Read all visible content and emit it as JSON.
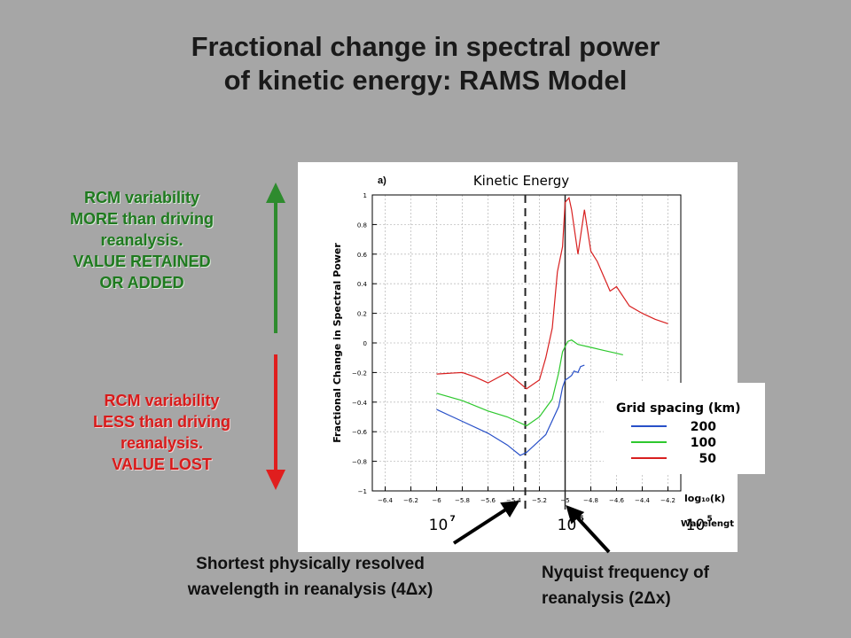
{
  "slide": {
    "title_lines": [
      "Fractional change in spectral power",
      "of kinetic energy: RAMS Model"
    ],
    "more_label_lines": [
      "RCM variability",
      "MORE than driving",
      "reanalysis.",
      "VALUE RETAINED",
      "OR ADDED"
    ],
    "less_label_lines": [
      "RCM variability",
      "LESS than driving",
      "reanalysis.",
      "VALUE LOST"
    ],
    "callout_4dx_lines": [
      "Shortest physically resolved",
      "wavelength in reanalysis (4Δx)"
    ],
    "callout_2dx_lines": [
      "Nyquist frequency of",
      "reanalysis (2Δx)"
    ],
    "colors": {
      "background": "#a6a6a6",
      "more": "#1f7a1f",
      "less": "#d81b1b",
      "arrow_up": "#2e8b2e",
      "arrow_down": "#e01e1e"
    }
  },
  "chart_data": {
    "type": "line",
    "panel_label": "a)",
    "title": "Kinetic Energy",
    "ylabel": "Fractional Change in Spectral Power",
    "xlabel": "log₁₀(k)",
    "xlim": [
      -6.5,
      -4.1
    ],
    "ylim": [
      -1,
      1
    ],
    "xticks": [
      -6.4,
      -6.2,
      -6,
      -5.8,
      -5.6,
      -5.4,
      -5.2,
      -5,
      -4.8,
      -4.6,
      -4.4,
      -4.2
    ],
    "xtick_labels": [
      "−6.4",
      "−6.2",
      "−6",
      "−5.8",
      "−5.6",
      "−5.4",
      "−5.2",
      "−5",
      "−4.8",
      "−4.6",
      "−4.4",
      "−4.2"
    ],
    "yticks": [
      -1,
      -0.8,
      -0.6,
      -0.4,
      -0.2,
      0,
      0.2,
      0.4,
      0.6,
      0.8,
      1
    ],
    "ytick_labels": [
      "−1",
      "−0.8",
      "−0.6",
      "−0.4",
      "−0.2",
      "0",
      "0.2",
      "0.4",
      "0.6",
      "0.8",
      "1"
    ],
    "grid": true,
    "wavelength_axis": {
      "label": "Wavelengt",
      "labels": [
        "10",
        "10",
        "10"
      ],
      "exponents": [
        "7",
        "6",
        "5"
      ],
      "at_x": [
        -6.0,
        -5.0,
        -4.0
      ]
    },
    "vlines": [
      {
        "x": -5.31,
        "style": "dashed"
      },
      {
        "x": -5.0,
        "style": "solid"
      }
    ],
    "legend": {
      "title": "Grid spacing (km)",
      "placement": "outside-right"
    },
    "series": [
      {
        "name": "200",
        "color": "#2850c8",
        "x": [
          -6.0,
          -5.8,
          -5.6,
          -5.45,
          -5.35,
          -5.3,
          -5.2,
          -5.15,
          -5.05,
          -5.02,
          -5.0,
          -4.98,
          -4.95,
          -4.93,
          -4.9,
          -4.88,
          -4.85
        ],
        "y": [
          -0.45,
          -0.53,
          -0.61,
          -0.69,
          -0.76,
          -0.74,
          -0.66,
          -0.62,
          -0.43,
          -0.3,
          -0.25,
          -0.24,
          -0.22,
          -0.19,
          -0.2,
          -0.16,
          -0.15
        ]
      },
      {
        "name": "100",
        "color": "#2ec82e",
        "x": [
          -6.0,
          -5.8,
          -5.6,
          -5.45,
          -5.3,
          -5.2,
          -5.15,
          -5.1,
          -5.05,
          -5.02,
          -4.98,
          -4.95,
          -4.9,
          -4.8,
          -4.7,
          -4.6,
          -4.55
        ],
        "y": [
          -0.34,
          -0.39,
          -0.46,
          -0.5,
          -0.56,
          -0.5,
          -0.44,
          -0.38,
          -0.2,
          -0.06,
          0.01,
          0.02,
          -0.01,
          -0.03,
          -0.05,
          -0.07,
          -0.08
        ]
      },
      {
        "name": "50",
        "color": "#d82020",
        "x": [
          -6.0,
          -5.8,
          -5.7,
          -5.6,
          -5.45,
          -5.3,
          -5.2,
          -5.15,
          -5.1,
          -5.06,
          -5.02,
          -5.0,
          -4.97,
          -4.95,
          -4.9,
          -4.85,
          -4.8,
          -4.75,
          -4.7,
          -4.65,
          -4.6,
          -4.5,
          -4.4,
          -4.3,
          -4.2
        ],
        "y": [
          -0.21,
          -0.2,
          -0.23,
          -0.27,
          -0.2,
          -0.31,
          -0.25,
          -0.1,
          0.1,
          0.48,
          0.65,
          0.95,
          0.98,
          0.9,
          0.6,
          0.9,
          0.62,
          0.55,
          0.45,
          0.35,
          0.38,
          0.25,
          0.2,
          0.16,
          0.13
        ]
      }
    ]
  }
}
